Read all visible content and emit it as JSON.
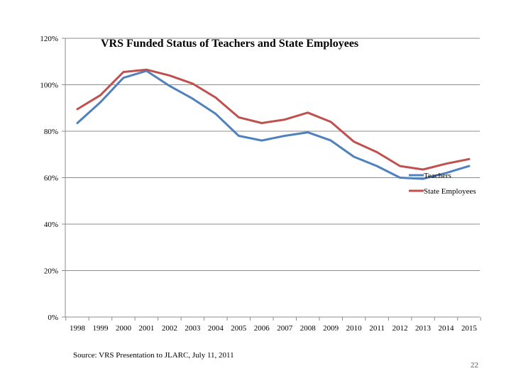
{
  "slide": {
    "source": "Source: VRS Presentation to JLARC, July 11, 2011",
    "page_number": "22"
  },
  "chart_data": {
    "type": "line",
    "title": "VRS Funded Status of Teachers and State Employees",
    "xlabel": "",
    "ylabel": "",
    "categories": [
      "1998",
      "1999",
      "2000",
      "2001",
      "2002",
      "2003",
      "2004",
      "2005",
      "2006",
      "2007",
      "2008",
      "2009",
      "2010",
      "2011",
      "2012",
      "2013",
      "2014",
      "2015"
    ],
    "y_ticks": [
      "0%",
      "20%",
      "40%",
      "60%",
      "80%",
      "100%",
      "120%"
    ],
    "ylim": [
      0,
      120
    ],
    "grid": true,
    "legend_position": "right",
    "series": [
      {
        "name": "Teachers",
        "color": "#4f81bd",
        "values": [
          83.5,
          92.5,
          103,
          106,
          99.5,
          94,
          87.5,
          78,
          76,
          78,
          79.5,
          76,
          69,
          65,
          60,
          59.5,
          62,
          65
        ]
      },
      {
        "name": "State Employees",
        "color": "#c0504d",
        "values": [
          89.5,
          95.5,
          105.5,
          106.5,
          104,
          100.5,
          94.5,
          86,
          83.5,
          85,
          88,
          84,
          75.5,
          71,
          65,
          63.5,
          66,
          68
        ]
      }
    ]
  }
}
